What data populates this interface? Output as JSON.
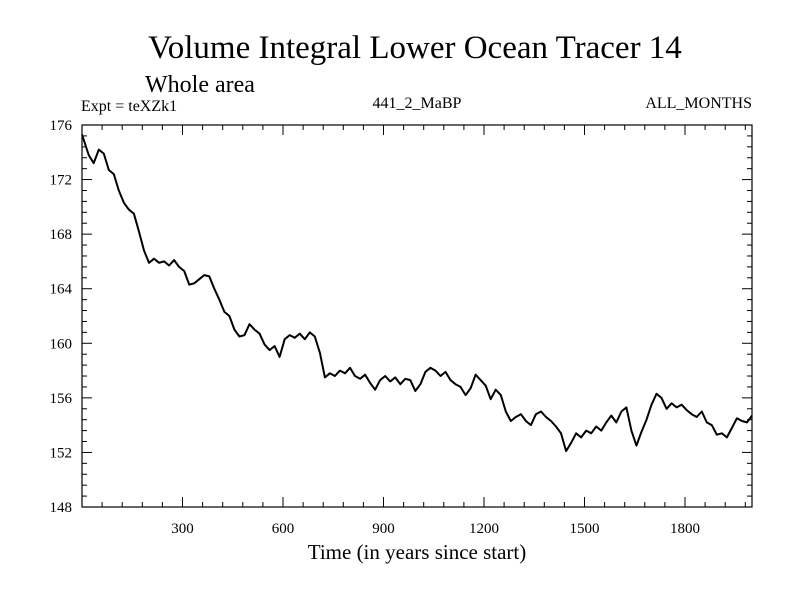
{
  "chart_data": {
    "type": "line",
    "title": "Volume Integral Lower Ocean Tracer 14",
    "subtitle": "Whole area",
    "expt_label": "Expt = teXZk1",
    "center_label": "441_2_MaBP",
    "right_label": "ALL_MONTHS",
    "xlabel": "Time (in years since start)",
    "ylabel": "",
    "xlim": [
      0,
      2000
    ],
    "ylim": [
      148,
      176
    ],
    "xticks": [
      300,
      600,
      900,
      1200,
      1500,
      1800
    ],
    "yticks": [
      148,
      152,
      156,
      160,
      164,
      168,
      172,
      176
    ],
    "series": [
      {
        "name": "Tracer 14",
        "color": "#000000",
        "x": [
          0,
          20,
          35,
          50,
          65,
          80,
          95,
          110,
          125,
          140,
          155,
          170,
          185,
          200,
          215,
          230,
          245,
          260,
          275,
          290,
          305,
          320,
          335,
          350,
          365,
          380,
          395,
          410,
          425,
          440,
          455,
          470,
          485,
          500,
          515,
          530,
          545,
          560,
          575,
          590,
          605,
          620,
          635,
          650,
          665,
          680,
          695,
          710,
          725,
          740,
          755,
          770,
          785,
          800,
          815,
          830,
          845,
          860,
          875,
          890,
          905,
          920,
          935,
          950,
          965,
          980,
          995,
          1010,
          1025,
          1040,
          1055,
          1070,
          1085,
          1100,
          1115,
          1130,
          1145,
          1160,
          1175,
          1190,
          1205,
          1220,
          1235,
          1250,
          1265,
          1280,
          1295,
          1310,
          1325,
          1340,
          1355,
          1370,
          1385,
          1400,
          1415,
          1430,
          1445,
          1460,
          1475,
          1490,
          1505,
          1520,
          1535,
          1550,
          1565,
          1580,
          1595,
          1610,
          1625,
          1640,
          1655,
          1670,
          1685,
          1700,
          1715,
          1730,
          1745,
          1760,
          1775,
          1790,
          1805,
          1820,
          1835,
          1850,
          1865,
          1880,
          1895,
          1910,
          1925,
          1940,
          1955,
          1970,
          1985,
          2000
        ],
        "values": [
          175.3,
          173.8,
          173.2,
          174.2,
          173.9,
          172.7,
          172.4,
          171.2,
          170.3,
          169.8,
          169.5,
          168.2,
          166.8,
          165.9,
          166.2,
          165.9,
          166.0,
          165.7,
          166.1,
          165.6,
          165.3,
          164.3,
          164.4,
          164.7,
          165.0,
          164.9,
          164.0,
          163.2,
          162.3,
          162.0,
          161.0,
          160.5,
          160.6,
          161.4,
          161.0,
          160.7,
          159.9,
          159.5,
          159.8,
          159.0,
          160.3,
          160.6,
          160.4,
          160.7,
          160.3,
          160.8,
          160.5,
          159.3,
          157.5,
          157.8,
          157.6,
          158.0,
          157.8,
          158.2,
          157.6,
          157.4,
          157.7,
          157.1,
          156.6,
          157.3,
          157.6,
          157.2,
          157.5,
          157.0,
          157.4,
          157.3,
          156.5,
          157.0,
          157.9,
          158.2,
          158.0,
          157.6,
          157.9,
          157.3,
          157.0,
          156.8,
          156.2,
          156.7,
          157.7,
          157.3,
          156.9,
          155.9,
          156.6,
          156.2,
          155.0,
          154.3,
          154.6,
          154.8,
          154.3,
          154.0,
          154.8,
          155.0,
          154.6,
          154.3,
          153.9,
          153.4,
          152.1,
          152.7,
          153.4,
          153.1,
          153.6,
          153.4,
          153.9,
          153.6,
          154.2,
          154.7,
          154.2,
          155.0,
          155.3,
          153.6,
          152.5,
          153.5,
          154.4,
          155.5,
          156.3,
          156.0,
          155.2,
          155.6,
          155.3,
          155.5,
          155.1,
          154.8,
          154.6,
          155.0,
          154.2,
          154.0,
          153.3,
          153.4,
          153.1,
          153.8,
          154.5,
          154.3,
          154.2,
          154.7
        ]
      }
    ]
  }
}
